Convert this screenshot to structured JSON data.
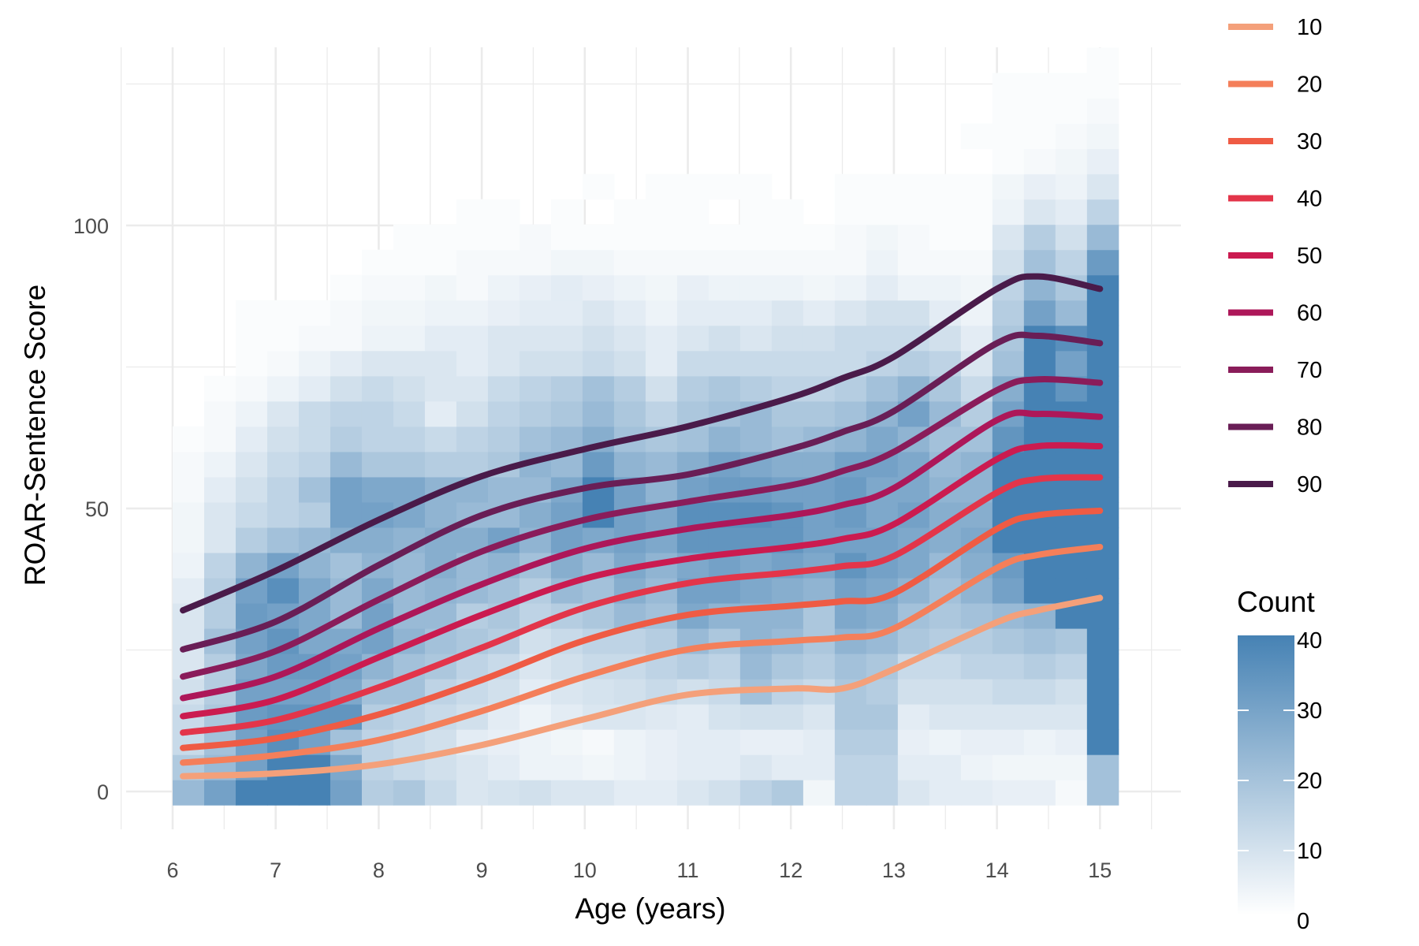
{
  "chart_data": {
    "type": "heatmap",
    "title": "",
    "xlabel": "Age (years)",
    "ylabel": "ROAR-Sentence Score",
    "xlim": [
      5.5,
      15.5
    ],
    "ylim": [
      -8,
      130
    ],
    "x_ticks": [
      6,
      7,
      8,
      9,
      10,
      11,
      12,
      13,
      14,
      15
    ],
    "x_tick_labels": [
      "6",
      "7",
      "8",
      "9",
      "10",
      "11",
      "12",
      "13",
      "14",
      "15"
    ],
    "y_ticks": [
      0,
      50,
      100
    ],
    "y_tick_labels": [
      "0",
      "50",
      "100"
    ],
    "grid": true,
    "heatmap": {
      "x_start": 6.0,
      "bin_width": 0.306,
      "y_start": -2.4,
      "bin_height": 4.46,
      "count_min": 0,
      "count_max": 40,
      "color_low": "#ffffff",
      "color_high": "#4682b4",
      "note": "rows listed bottom to top; each row has 30 column counts; null = no data",
      "counts": [
        [
          22,
          30,
          40,
          40,
          40,
          30,
          16,
          18,
          12,
          8,
          9,
          10,
          8,
          8,
          6,
          6,
          8,
          10,
          14,
          17,
          3,
          14,
          14,
          8,
          6,
          6,
          5,
          5,
          2,
          20
        ],
        [
          17,
          22,
          30,
          40,
          40,
          28,
          14,
          12,
          10,
          8,
          6,
          4,
          4,
          3,
          4,
          5,
          6,
          6,
          8,
          6,
          6,
          14,
          14,
          6,
          6,
          4,
          3,
          3,
          3,
          20
        ],
        [
          12,
          20,
          30,
          36,
          30,
          20,
          14,
          12,
          10,
          6,
          5,
          4,
          3,
          2,
          4,
          5,
          6,
          6,
          5,
          5,
          6,
          16,
          16,
          5,
          4,
          5,
          5,
          4,
          5,
          40
        ],
        [
          12,
          18,
          32,
          34,
          34,
          34,
          16,
          14,
          12,
          10,
          6,
          4,
          6,
          8,
          8,
          7,
          6,
          9,
          10,
          10,
          8,
          18,
          18,
          6,
          8,
          8,
          8,
          8,
          8,
          40
        ],
        [
          10,
          16,
          30,
          30,
          30,
          28,
          20,
          20,
          14,
          12,
          10,
          6,
          8,
          9,
          10,
          12,
          10,
          12,
          20,
          14,
          12,
          18,
          16,
          10,
          10,
          10,
          12,
          12,
          10,
          40
        ],
        [
          8,
          16,
          28,
          32,
          32,
          30,
          24,
          20,
          18,
          14,
          12,
          8,
          10,
          12,
          12,
          14,
          16,
          14,
          22,
          18,
          16,
          20,
          18,
          12,
          12,
          14,
          14,
          16,
          14,
          40
        ],
        [
          8,
          20,
          30,
          34,
          28,
          28,
          30,
          24,
          20,
          18,
          16,
          10,
          12,
          14,
          14,
          16,
          22,
          18,
          24,
          22,
          18,
          24,
          22,
          18,
          16,
          16,
          18,
          20,
          18,
          40
        ],
        [
          8,
          16,
          32,
          30,
          28,
          22,
          30,
          22,
          22,
          16,
          18,
          14,
          16,
          18,
          22,
          20,
          28,
          24,
          24,
          24,
          18,
          28,
          26,
          20,
          18,
          20,
          22,
          24,
          40,
          40
        ],
        [
          6,
          16,
          30,
          36,
          28,
          22,
          28,
          22,
          24,
          22,
          20,
          16,
          22,
          20,
          26,
          22,
          30,
          30,
          28,
          26,
          24,
          30,
          28,
          24,
          20,
          24,
          30,
          40,
          40,
          40
        ],
        [
          4,
          14,
          24,
          30,
          24,
          20,
          24,
          22,
          26,
          22,
          24,
          20,
          26,
          22,
          28,
          24,
          28,
          30,
          28,
          30,
          28,
          34,
          30,
          28,
          22,
          26,
          32,
          40,
          40,
          40
        ],
        [
          3,
          8,
          16,
          20,
          22,
          26,
          26,
          24,
          26,
          26,
          30,
          24,
          30,
          28,
          30,
          28,
          34,
          34,
          34,
          34,
          30,
          30,
          30,
          28,
          26,
          28,
          40,
          40,
          40,
          40
        ],
        [
          3,
          8,
          12,
          14,
          16,
          30,
          30,
          28,
          24,
          22,
          22,
          26,
          30,
          40,
          30,
          28,
          36,
          36,
          36,
          34,
          30,
          32,
          28,
          30,
          26,
          26,
          40,
          40,
          40,
          40
        ],
        [
          2,
          6,
          10,
          14,
          20,
          30,
          28,
          28,
          24,
          24,
          22,
          22,
          28,
          40,
          30,
          24,
          30,
          32,
          32,
          30,
          30,
          32,
          28,
          28,
          24,
          24,
          40,
          40,
          40,
          40
        ],
        [
          2,
          4,
          8,
          12,
          14,
          22,
          18,
          18,
          16,
          16,
          18,
          24,
          22,
          32,
          24,
          22,
          26,
          30,
          28,
          26,
          26,
          30,
          30,
          28,
          22,
          24,
          40,
          40,
          40,
          40
        ],
        [
          1,
          2,
          6,
          10,
          12,
          16,
          14,
          14,
          12,
          14,
          16,
          20,
          22,
          26,
          20,
          18,
          20,
          24,
          22,
          20,
          22,
          24,
          28,
          24,
          20,
          20,
          34,
          40,
          40,
          40
        ],
        [
          null,
          2,
          4,
          8,
          12,
          14,
          14,
          12,
          6,
          10,
          14,
          16,
          18,
          22,
          18,
          14,
          18,
          20,
          22,
          18,
          18,
          20,
          24,
          30,
          22,
          16,
          30,
          40,
          40,
          40
        ],
        [
          null,
          1,
          2,
          4,
          6,
          10,
          12,
          10,
          8,
          8,
          12,
          14,
          16,
          20,
          16,
          10,
          16,
          18,
          16,
          14,
          14,
          16,
          20,
          24,
          18,
          12,
          26,
          40,
          34,
          40
        ],
        [
          null,
          null,
          1,
          2,
          4,
          6,
          8,
          8,
          8,
          6,
          8,
          10,
          10,
          12,
          10,
          6,
          12,
          12,
          12,
          12,
          12,
          12,
          14,
          16,
          14,
          8,
          20,
          40,
          30,
          40
        ],
        [
          null,
          null,
          1,
          1,
          2,
          2,
          4,
          4,
          6,
          6,
          8,
          8,
          8,
          10,
          8,
          6,
          8,
          10,
          8,
          10,
          10,
          12,
          12,
          12,
          10,
          6,
          18,
          40,
          36,
          40
        ],
        [
          null,
          null,
          1,
          1,
          1,
          2,
          3,
          3,
          4,
          4,
          5,
          6,
          6,
          8,
          6,
          4,
          6,
          6,
          6,
          8,
          6,
          8,
          10,
          10,
          6,
          4,
          16,
          30,
          22,
          40
        ],
        [
          null,
          null,
          null,
          null,
          null,
          1,
          2,
          2,
          3,
          2,
          4,
          5,
          6,
          5,
          4,
          3,
          5,
          4,
          4,
          4,
          3,
          4,
          6,
          4,
          4,
          3,
          14,
          24,
          18,
          40
        ],
        [
          null,
          null,
          null,
          null,
          null,
          null,
          1,
          1,
          1,
          2,
          2,
          2,
          3,
          3,
          2,
          2,
          2,
          2,
          2,
          2,
          2,
          2,
          4,
          2,
          2,
          2,
          10,
          20,
          14,
          32
        ],
        [
          null,
          null,
          null,
          null,
          null,
          null,
          null,
          1,
          1,
          1,
          1,
          2,
          1,
          1,
          1,
          1,
          1,
          1,
          1,
          1,
          1,
          2,
          3,
          2,
          1,
          1,
          8,
          16,
          10,
          22
        ],
        [
          null,
          null,
          null,
          null,
          null,
          null,
          null,
          null,
          null,
          1,
          1,
          null,
          1,
          null,
          1,
          1,
          1,
          null,
          1,
          1,
          null,
          1,
          1,
          1,
          1,
          1,
          4,
          8,
          6,
          14
        ],
        [
          null,
          null,
          null,
          null,
          null,
          null,
          null,
          null,
          null,
          null,
          null,
          null,
          null,
          1,
          null,
          1,
          1,
          1,
          1,
          null,
          null,
          1,
          1,
          1,
          1,
          1,
          3,
          5,
          4,
          8
        ],
        [
          null,
          null,
          null,
          null,
          null,
          null,
          null,
          null,
          null,
          null,
          null,
          null,
          null,
          null,
          null,
          null,
          null,
          null,
          null,
          null,
          null,
          null,
          null,
          null,
          null,
          null,
          1,
          2,
          3,
          5
        ],
        [
          null,
          null,
          null,
          null,
          null,
          null,
          null,
          null,
          null,
          null,
          null,
          null,
          null,
          null,
          null,
          null,
          null,
          null,
          null,
          null,
          null,
          null,
          null,
          null,
          null,
          1,
          1,
          1,
          2,
          3
        ],
        [
          null,
          null,
          null,
          null,
          null,
          null,
          null,
          null,
          null,
          null,
          null,
          null,
          null,
          null,
          null,
          null,
          null,
          null,
          null,
          null,
          null,
          null,
          null,
          null,
          null,
          null,
          1,
          1,
          1,
          2
        ],
        [
          null,
          null,
          null,
          null,
          null,
          null,
          null,
          null,
          null,
          null,
          null,
          null,
          null,
          null,
          null,
          null,
          null,
          null,
          null,
          null,
          null,
          null,
          null,
          null,
          null,
          null,
          1,
          1,
          1,
          1
        ],
        [
          null,
          null,
          null,
          null,
          null,
          null,
          null,
          null,
          null,
          null,
          null,
          null,
          null,
          null,
          null,
          null,
          null,
          null,
          null,
          null,
          null,
          null,
          null,
          null,
          null,
          null,
          null,
          null,
          null,
          1
        ]
      ]
    },
    "series": [
      {
        "name": "10",
        "color": "#f4a07a",
        "x": [
          6.1,
          7,
          8,
          9,
          10,
          11,
          12,
          12.5,
          13,
          14,
          14.4,
          15
        ],
        "y": [
          2.7,
          3.2,
          4.8,
          8.2,
          12.8,
          17.1,
          18.2,
          18.2,
          21.6,
          29.9,
          32.0,
          34.2
        ]
      },
      {
        "name": "20",
        "color": "#f47f5a",
        "x": [
          6.1,
          7,
          8,
          9,
          10,
          11,
          12,
          12.5,
          13,
          14,
          14.4,
          15
        ],
        "y": [
          5.1,
          6.4,
          9.1,
          14.2,
          20.3,
          25.1,
          26.6,
          27.2,
          28.8,
          39.5,
          41.8,
          43.2
        ]
      },
      {
        "name": "30",
        "color": "#ef5b44",
        "x": [
          6.1,
          7,
          8,
          9,
          10,
          11,
          12,
          12.5,
          13,
          14,
          14.4,
          15
        ],
        "y": [
          7.7,
          9.4,
          13.6,
          19.7,
          26.7,
          31.2,
          32.8,
          33.6,
          35.0,
          46.4,
          48.8,
          49.6
        ]
      },
      {
        "name": "40",
        "color": "#e3354a",
        "x": [
          6.1,
          7,
          8,
          9,
          10,
          11,
          12,
          12.5,
          13,
          14,
          14.4,
          15
        ],
        "y": [
          10.4,
          12.6,
          18.4,
          25.4,
          32.5,
          36.8,
          38.7,
          39.8,
          41.6,
          52.8,
          55.2,
          55.5
        ]
      },
      {
        "name": "50",
        "color": "#cb1b50",
        "x": [
          6.1,
          7,
          8,
          9,
          10,
          11,
          12,
          12.5,
          13,
          14,
          14.4,
          15
        ],
        "y": [
          13.3,
          16.2,
          23.7,
          31.2,
          37.6,
          41.1,
          43.2,
          44.6,
          47.2,
          58.7,
          61.0,
          61.0
        ]
      },
      {
        "name": "60",
        "color": "#ad1759",
        "x": [
          6.1,
          7,
          8,
          9,
          10,
          11,
          12,
          12.5,
          13,
          14,
          14.4,
          15
        ],
        "y": [
          16.5,
          20.3,
          28.8,
          36.6,
          42.9,
          46.4,
          48.8,
          50.6,
          53.6,
          65.6,
          66.7,
          66.2
        ]
      },
      {
        "name": "70",
        "color": "#8a1c5a",
        "x": [
          6.1,
          7,
          8,
          9,
          10,
          11,
          12,
          12.5,
          13,
          14,
          14.4,
          15
        ],
        "y": [
          20.3,
          24.8,
          33.9,
          42.4,
          48.0,
          51.2,
          54.1,
          56.6,
          60.0,
          70.9,
          72.8,
          72.2
        ]
      },
      {
        "name": "80",
        "color": "#691e56",
        "x": [
          6.1,
          7,
          8,
          9,
          10,
          11,
          12,
          12.5,
          13,
          14,
          14.4,
          15
        ],
        "y": [
          25.1,
          30.0,
          40.0,
          48.8,
          53.6,
          56.0,
          60.5,
          63.5,
          67.2,
          79.2,
          80.5,
          79.2
        ]
      },
      {
        "name": "90",
        "color": "#4a1b4a",
        "x": [
          6.1,
          7,
          8,
          9,
          10,
          11,
          12,
          12.5,
          13,
          14,
          14.4,
          15
        ],
        "y": [
          32.0,
          39.0,
          48.0,
          55.7,
          60.5,
          64.5,
          69.6,
          73.0,
          76.8,
          88.8,
          91.0,
          88.8
        ]
      }
    ],
    "legends": {
      "percentile_legend": {
        "placement": "top-right",
        "entries": [
          "10",
          "20",
          "30",
          "40",
          "50",
          "60",
          "70",
          "80",
          "90"
        ]
      },
      "count_legend": {
        "placement": "bottom-right",
        "title": "Count",
        "tick_labels": [
          "0",
          "10",
          "20",
          "30",
          "40"
        ],
        "ticks": [
          0,
          10,
          20,
          30,
          40
        ]
      }
    }
  }
}
